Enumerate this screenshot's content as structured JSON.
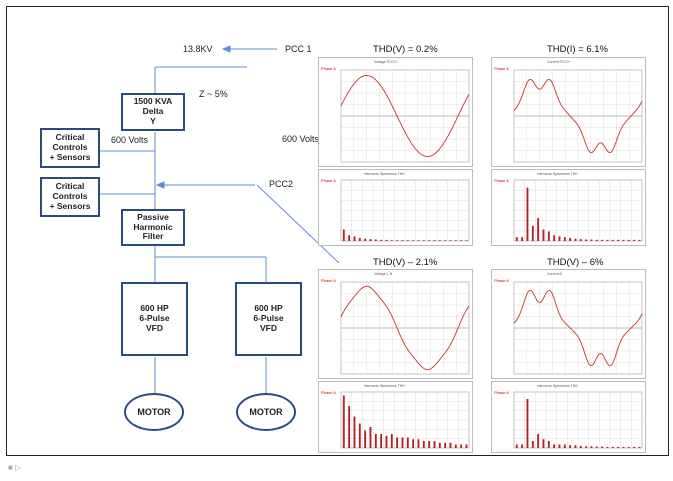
{
  "diagram": {
    "label_13kv": "13.8KV",
    "label_pcc1": "PCC 1",
    "label_pcc2": "PCC2",
    "label_impedance": "Z ~ 5%",
    "label_600v_left": "600 Volts",
    "label_600v_right": "600 Volts",
    "transformer": "1500 KVA\nDelta\nY",
    "critical_1": "Critical\nControls\n+ Sensors",
    "critical_2": "Critical\nControls\n+ Sensors",
    "filter": "Passive\nHarmonic\nFilter",
    "vfd_1": "600 HP\n6-Pulse\nVFD",
    "vfd_2": "600 HP\n6-Pulse\nVFD",
    "motor_1": "MOTOR",
    "motor_2": "MOTOR"
  },
  "panels": {
    "tl": {
      "title": "THD(V) =  0.2%",
      "wave_hdr": "Voltage PCC1*",
      "phase": "Phase A",
      "spec_hdr": "Harmonic Spectrums   THD"
    },
    "tr": {
      "title": "THD(I) =  6.1%",
      "wave_hdr": "Current PCC1*",
      "phase": "Phase A",
      "spec_hdr": "Harmonic Spectrums   THD"
    },
    "bl": {
      "title": "THD(V) –  2.1%",
      "wave_hdr": "Voltage L-N",
      "phase": "Phase A",
      "spec_hdr": "Harmonic Spectrums   THD"
    },
    "br": {
      "title": "THD(V) –  6%",
      "wave_hdr": "Current A",
      "phase": "Phase A",
      "spec_hdr": "Harmonic Spectrums   THD"
    }
  },
  "colors": {
    "trace": "#c0392b",
    "bar": "#b22222",
    "wire": "#5b8fd6",
    "box_border": "#2a4a80"
  },
  "chart_data": [
    {
      "type": "line",
      "title": "THD(V) =  0.2%",
      "series": [
        {
          "shape": "sine",
          "distortion": 0.0
        }
      ]
    },
    {
      "type": "bar",
      "values": [
        3,
        1.5,
        1.2,
        0.8,
        0.6,
        0.5,
        0.4,
        0.3,
        0.3,
        0.2,
        0.2,
        0.2,
        0.2,
        0.2,
        0.2,
        0.2,
        0.2,
        0.2,
        0.2,
        0.2,
        0.2,
        0.2,
        0.2,
        0.2
      ]
    },
    {
      "type": "line",
      "title": "THD(I) =  6.1%",
      "series": [
        {
          "shape": "distorted-current",
          "distortion": 0.3
        }
      ]
    },
    {
      "type": "bar",
      "values": [
        1,
        1,
        14,
        4,
        6,
        3,
        2.5,
        1.5,
        1.2,
        1,
        0.8,
        0.6,
        0.5,
        0.4,
        0.4,
        0.3,
        0.3,
        0.3,
        0.3,
        0.3,
        0.3,
        0.3,
        0.3,
        0.3
      ]
    },
    {
      "type": "line",
      "title": "THD(V) –  2.1%",
      "series": [
        {
          "shape": "sine",
          "distortion": 0.05
        }
      ]
    },
    {
      "type": "bar",
      "values": [
        15,
        12,
        9,
        7,
        5,
        6,
        4,
        4,
        3.5,
        4,
        3,
        3,
        3,
        2.5,
        2.5,
        2,
        2,
        2,
        1.5,
        1.5,
        1.5,
        1,
        1,
        1
      ]
    },
    {
      "type": "line",
      "title": "THD(V) –  6%",
      "series": [
        {
          "shape": "distorted-current",
          "distortion": 0.35
        }
      ]
    },
    {
      "type": "bar",
      "values": [
        1,
        1,
        14,
        2,
        4,
        2.5,
        2,
        1,
        1,
        1,
        0.8,
        0.8,
        0.6,
        0.5,
        0.5,
        0.4,
        0.4,
        0.3,
        0.3,
        0.3,
        0.3,
        0.3,
        0.3,
        0.3
      ]
    }
  ],
  "footer": "■  ▷"
}
